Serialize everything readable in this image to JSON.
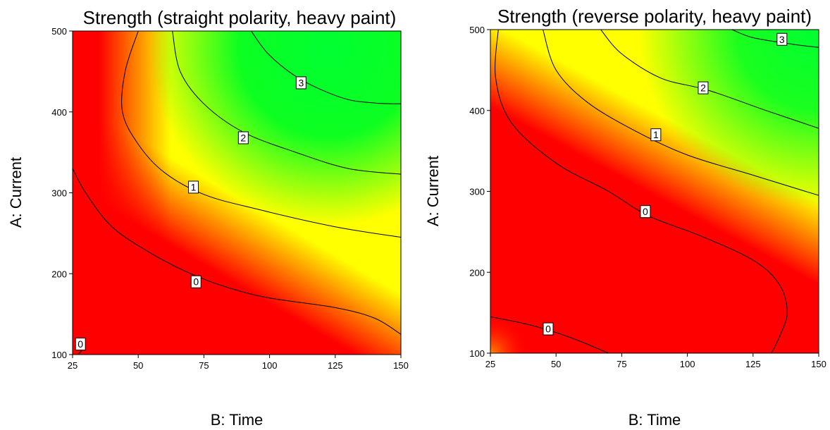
{
  "chart_data": [
    {
      "type": "contour",
      "title": "Strength (straight polarity, heavy paint)",
      "xlabel": "B: Time",
      "ylabel": "A: Current",
      "xlim": [
        25,
        150
      ],
      "ylim": [
        100,
        500
      ],
      "xticks": [
        25,
        50,
        75,
        100,
        125,
        150
      ],
      "yticks": [
        100,
        200,
        300,
        400,
        500
      ],
      "color_scale": [
        "#ff0000",
        "#ffff00",
        "#00ff00"
      ],
      "contours": [
        {
          "level": "0",
          "points": [
            [
              27,
              100
            ],
            [
              30,
              110
            ]
          ]
        },
        {
          "level": "0",
          "points": [
            [
              25,
              330
            ],
            [
              30,
              300
            ],
            [
              40,
              258
            ],
            [
              55,
              225
            ],
            [
              70,
              200
            ],
            [
              85,
              182
            ],
            [
              100,
              170
            ],
            [
              125,
              158
            ],
            [
              140,
              145
            ],
            [
              150,
              125
            ]
          ]
        },
        {
          "level": "1",
          "points": [
            [
              50,
              500
            ],
            [
              45,
              450
            ],
            [
              44,
              400
            ],
            [
              50,
              360
            ],
            [
              60,
              325
            ],
            [
              75,
              298
            ],
            [
              95,
              280
            ],
            [
              125,
              258
            ],
            [
              150,
              245
            ]
          ]
        },
        {
          "level": "2",
          "points": [
            [
              63,
              500
            ],
            [
              66,
              450
            ],
            [
              75,
              410
            ],
            [
              90,
              375
            ],
            [
              110,
              350
            ],
            [
              130,
              330
            ],
            [
              150,
              323
            ]
          ]
        },
        {
          "level": "3",
          "points": [
            [
              93,
              500
            ],
            [
              100,
              470
            ],
            [
              112,
              440
            ],
            [
              128,
              417
            ],
            [
              140,
              411
            ],
            [
              150,
              410
            ]
          ]
        }
      ],
      "contour_labels": [
        {
          "text": "0",
          "x": 28,
          "y": 113
        },
        {
          "text": "0",
          "x": 72,
          "y": 190
        },
        {
          "text": "1",
          "x": 71,
          "y": 307
        },
        {
          "text": "2",
          "x": 90,
          "y": 368
        },
        {
          "text": "3",
          "x": 112,
          "y": 436
        }
      ]
    },
    {
      "type": "contour",
      "title": "Strength (reverse polarity, heavy paint)",
      "xlabel": "B: Time",
      "ylabel": "A: Current",
      "xlim": [
        25,
        150
      ],
      "ylim": [
        100,
        500
      ],
      "xticks": [
        25,
        50,
        75,
        100,
        125,
        150
      ],
      "yticks": [
        100,
        200,
        300,
        400,
        500
      ],
      "color_scale": [
        "#ff0000",
        "#ffff00",
        "#00ff00"
      ],
      "contours": [
        {
          "level": "0",
          "points": [
            [
              25,
              145
            ],
            [
              40,
              135
            ],
            [
              55,
              120
            ],
            [
              70,
              100
            ]
          ]
        },
        {
          "level": "0",
          "points": [
            [
              28,
              500
            ],
            [
              27,
              440
            ],
            [
              33,
              385
            ],
            [
              50,
              335
            ],
            [
              70,
              300
            ],
            [
              85,
              270
            ],
            [
              105,
              245
            ],
            [
              125,
              215
            ],
            [
              135,
              185
            ],
            [
              138,
              150
            ],
            [
              135,
              120
            ],
            [
              132,
              100
            ]
          ]
        },
        {
          "level": "1",
          "points": [
            [
              45,
              500
            ],
            [
              50,
              450
            ],
            [
              62,
              410
            ],
            [
              80,
              375
            ],
            [
              100,
              345
            ],
            [
              125,
              320
            ],
            [
              150,
              295
            ]
          ]
        },
        {
          "level": "2",
          "points": [
            [
              67,
              500
            ],
            [
              75,
              470
            ],
            [
              90,
              440
            ],
            [
              108,
              425
            ],
            [
              130,
              400
            ],
            [
              150,
              378
            ]
          ]
        },
        {
          "level": "3",
          "points": [
            [
              117,
              500
            ],
            [
              125,
              490
            ],
            [
              140,
              482
            ],
            [
              150,
              478
            ]
          ]
        }
      ],
      "contour_labels": [
        {
          "text": "0",
          "x": 47,
          "y": 130
        },
        {
          "text": "0",
          "x": 84,
          "y": 275
        },
        {
          "text": "1",
          "x": 88,
          "y": 370
        },
        {
          "text": "2",
          "x": 106,
          "y": 428
        },
        {
          "text": "3",
          "x": 136,
          "y": 488
        }
      ]
    }
  ]
}
